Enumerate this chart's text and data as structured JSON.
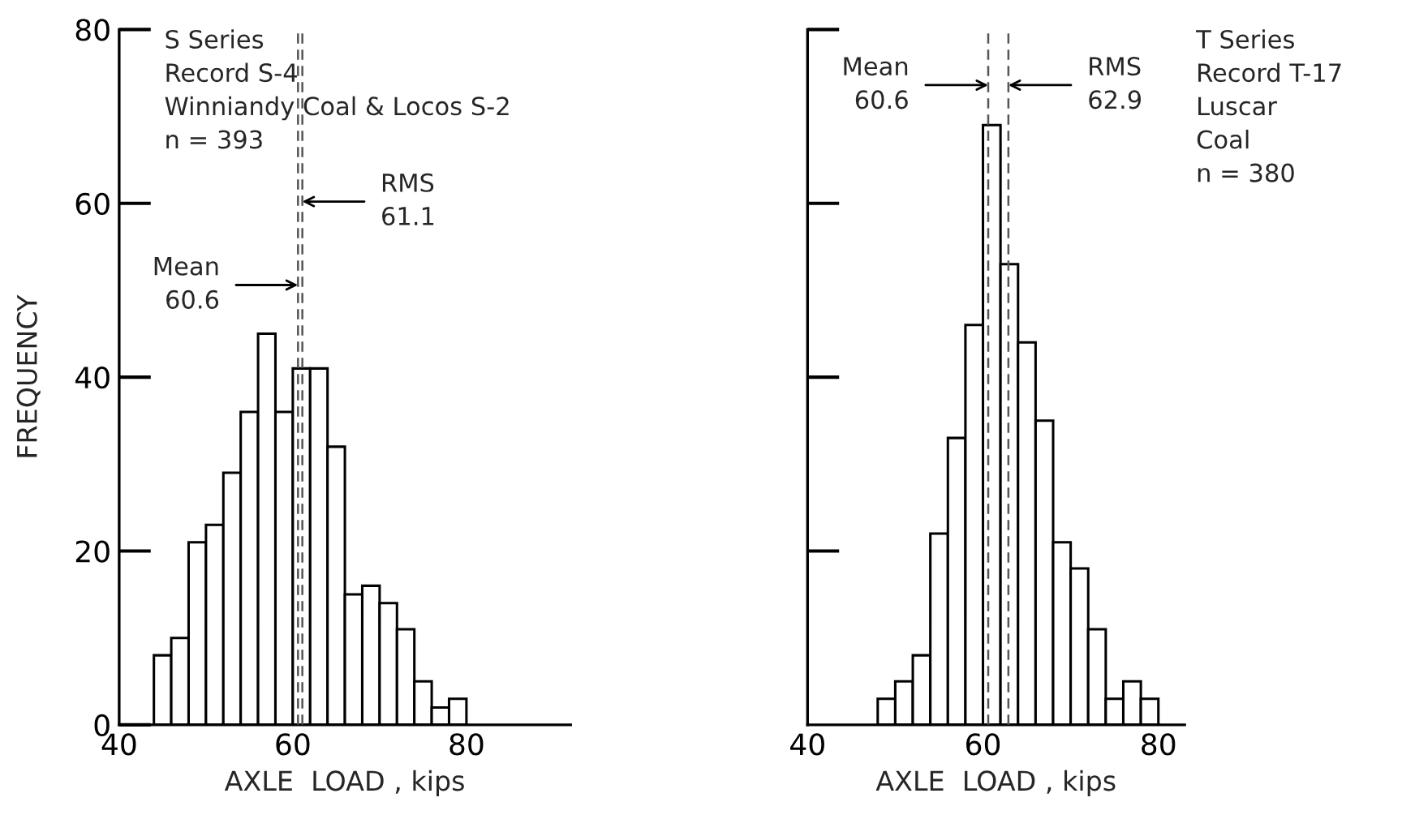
{
  "chart_data": [
    {
      "type": "histogram",
      "xlabel": "AXLE  LOAD , kips",
      "ylabel": "FREQUENCY",
      "bins": [
        44,
        46,
        48,
        50,
        52,
        54,
        56,
        58,
        60,
        62,
        64,
        66,
        68,
        70,
        72,
        74,
        76,
        78,
        80
      ],
      "values": [
        8,
        10,
        21,
        23,
        29,
        36,
        45,
        36,
        41,
        41,
        32,
        15,
        16,
        14,
        11,
        5,
        2,
        3
      ],
      "color": "#ffffff",
      "xlim": [
        40,
        92
      ],
      "xticks": [
        40,
        60,
        80
      ],
      "ylim": [
        0,
        80
      ],
      "yticks": [
        0,
        20,
        40,
        60,
        80
      ],
      "ref_lines": [
        {
          "axis": "x",
          "value": 60.6,
          "line_style": "dashed",
          "label": "Mean\n60.6"
        },
        {
          "axis": "x",
          "value": 61.1,
          "line_style": "dashed",
          "label": "RMS\n61.1"
        }
      ],
      "annotations": [
        "S Series\nRecord S-4\nWinniandy Coal & Locos S-2\nn = 393"
      ],
      "grid": false
    },
    {
      "type": "histogram",
      "xlabel": "AXLE  LOAD , kips",
      "bins": [
        48,
        50,
        52,
        54,
        56,
        58,
        60,
        62,
        64,
        66,
        68,
        70,
        72,
        74,
        76,
        78,
        80
      ],
      "values": [
        3,
        5,
        8,
        22,
        33,
        46,
        69,
        53,
        44,
        35,
        21,
        18,
        11,
        3,
        5,
        3
      ],
      "color": "#ffffff",
      "xlim": [
        40,
        83
      ],
      "xticks": [
        40,
        60,
        80
      ],
      "ylim": [
        0,
        80
      ],
      "yticks": [
        {
          "value": 20,
          "label": null
        },
        {
          "value": 40,
          "label": null
        },
        {
          "value": 60,
          "label": null
        },
        {
          "value": 80,
          "label": null
        }
      ],
      "tick_labels": "x",
      "ref_lines": [
        {
          "axis": "x",
          "value": 60.6,
          "line_style": "dashed",
          "label": "Mean\n60.6"
        },
        {
          "axis": "x",
          "value": 62.9,
          "line_style": "dashed",
          "label": "RMS\n62.9"
        }
      ],
      "annotations": [
        "T Series\nRecord T-17\nLuscar\nCoal\nn = 380"
      ],
      "grid": false
    }
  ]
}
